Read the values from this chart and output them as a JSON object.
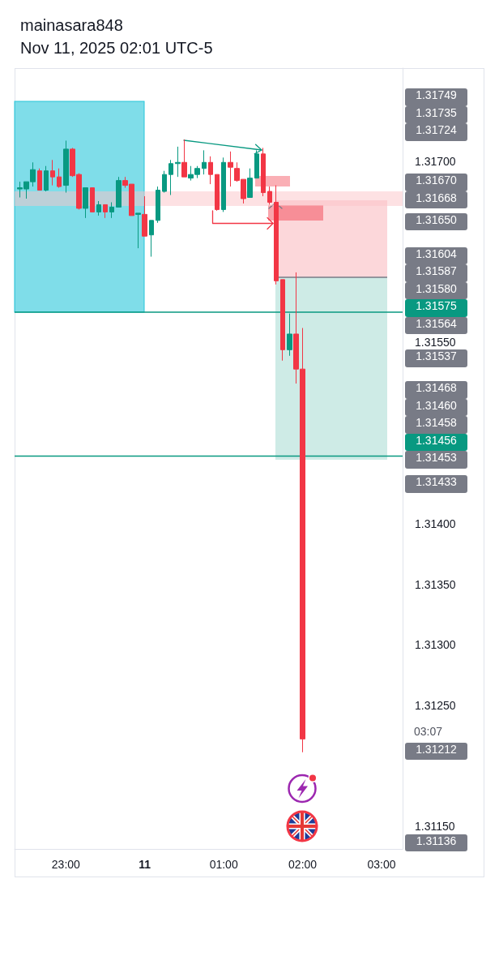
{
  "chart_data": {
    "type": "candlestick",
    "title": "mainasara848",
    "subtitle": "Nov 11, 2025 02:01 UTC-5",
    "x": [
      "2025-11-10T22:25",
      "2025-11-10T22:30",
      "2025-11-10T22:35",
      "2025-11-10T22:40",
      "2025-11-10T22:45",
      "2025-11-10T22:50",
      "2025-11-10T22:55",
      "2025-11-10T23:00",
      "2025-11-10T23:05",
      "2025-11-10T23:10",
      "2025-11-10T23:15",
      "2025-11-10T23:20",
      "2025-11-10T23:25",
      "2025-11-10T23:30",
      "2025-11-10T23:35",
      "2025-11-10T23:40",
      "2025-11-10T23:45",
      "2025-11-10T23:50",
      "2025-11-10T23:55",
      "2025-11-11T00:00",
      "2025-11-11T00:05",
      "2025-11-11T00:10",
      "2025-11-11T00:15",
      "2025-11-11T00:20",
      "2025-11-11T00:25",
      "2025-11-11T00:30",
      "2025-11-11T00:35",
      "2025-11-11T00:40",
      "2025-11-11T00:45",
      "2025-11-11T00:50",
      "2025-11-11T00:55",
      "2025-11-11T01:00",
      "2025-11-11T01:05",
      "2025-11-11T01:10",
      "2025-11-11T01:15",
      "2025-11-11T01:20",
      "2025-11-11T01:25",
      "2025-11-11T01:30",
      "2025-11-11T01:35",
      "2025-11-11T01:40",
      "2025-11-11T01:45",
      "2025-11-11T01:50",
      "2025-11-11T01:55",
      "2025-11-11T02:00"
    ],
    "ohlc": [
      [
        1.31677,
        1.31683,
        1.3167,
        1.31678
      ],
      [
        1.31677,
        1.31683,
        1.31669,
        1.31683
      ],
      [
        1.31683,
        1.31699,
        1.31679,
        1.31693
      ],
      [
        1.31692,
        1.31694,
        1.31676,
        1.31676
      ],
      [
        1.31676,
        1.31696,
        1.31675,
        1.31692
      ],
      [
        1.31692,
        1.31701,
        1.3168,
        1.31687
      ],
      [
        1.31687,
        1.31694,
        1.31678,
        1.31679
      ],
      [
        1.3168,
        1.31717,
        1.31674,
        1.3171
      ],
      [
        1.3171,
        1.31711,
        1.31687,
        1.31688
      ],
      [
        1.31689,
        1.3169,
        1.3166,
        1.31661
      ],
      [
        1.31661,
        1.31678,
        1.31653,
        1.31678
      ],
      [
        1.31678,
        1.31678,
        1.31658,
        1.31658
      ],
      [
        1.31658,
        1.31667,
        1.31655,
        1.31664
      ],
      [
        1.31664,
        1.31664,
        1.31653,
        1.31658
      ],
      [
        1.31658,
        1.31666,
        1.31653,
        1.31662
      ],
      [
        1.31662,
        1.31687,
        1.31662,
        1.31684
      ],
      [
        1.31684,
        1.31687,
        1.31678,
        1.3168
      ],
      [
        1.31681,
        1.31681,
        1.31655,
        1.31655
      ],
      [
        1.31656,
        1.31657,
        1.31628,
        1.31657
      ],
      [
        1.31656,
        1.31671,
        1.31638,
        1.31638
      ],
      [
        1.31639,
        1.31651,
        1.31621,
        1.31651
      ],
      [
        1.31651,
        1.31679,
        1.31649,
        1.31676
      ],
      [
        1.31675,
        1.31692,
        1.31674,
        1.31689
      ],
      [
        1.31689,
        1.31701,
        1.31672,
        1.31698
      ],
      [
        1.31698,
        1.31712,
        1.31687,
        1.31699
      ],
      [
        1.31699,
        1.31718,
        1.31687,
        1.31687
      ],
      [
        1.31686,
        1.31696,
        1.31684,
        1.31689
      ],
      [
        1.31689,
        1.31696,
        1.31686,
        1.31694
      ],
      [
        1.31694,
        1.31709,
        1.31689,
        1.31699
      ],
      [
        1.31699,
        1.31704,
        1.31681,
        1.31689
      ],
      [
        1.31689,
        1.31689,
        1.31659,
        1.3166
      ],
      [
        1.3166,
        1.31703,
        1.31658,
        1.31699
      ],
      [
        1.31699,
        1.31708,
        1.31679,
        1.31695
      ],
      [
        1.31694,
        1.31699,
        1.31683,
        1.31684
      ],
      [
        1.31685,
        1.31685,
        1.31665,
        1.31669
      ],
      [
        1.3167,
        1.31694,
        1.3167,
        1.31686
      ],
      [
        1.31686,
        1.31709,
        1.31686,
        1.31706
      ],
      [
        1.31706,
        1.31711,
        1.31671,
        1.31674
      ],
      [
        1.31675,
        1.31679,
        1.31664,
        1.31666
      ],
      [
        1.31666,
        1.3168,
        1.31598,
        1.31601
      ],
      [
        1.31602,
        1.31602,
        1.31535,
        1.31544
      ],
      [
        1.31544,
        1.31574,
        1.31539,
        1.31557
      ],
      [
        1.31557,
        1.31608,
        1.31516,
        1.31528
      ],
      [
        1.31528,
        1.31562,
        1.31211,
        1.31222
      ]
    ],
    "colors": [
      "#089981",
      "#089981",
      "#089981",
      "#f23645",
      "#089981",
      "#f23645",
      "#f23645",
      "#089981",
      "#f23645",
      "#f23645",
      "#089981",
      "#f23645",
      "#089981",
      "#f23645",
      "#089981",
      "#089981",
      "#f23645",
      "#f23645",
      "#089981",
      "#f23645",
      "#089981",
      "#089981",
      "#089981",
      "#089981",
      "#089981",
      "#f23645",
      "#089981",
      "#089981",
      "#089981",
      "#f23645",
      "#f23645",
      "#089981",
      "#f23645",
      "#f23645",
      "#f23645",
      "#089981",
      "#089981",
      "#f23645",
      "#f23645",
      "#f23645",
      "#f23645",
      "#089981",
      "#f23645",
      "#f23645"
    ],
    "xlim": [
      "2025-11-10T22:21",
      "2025-11-11T03:16"
    ],
    "xticks": [
      {
        "value": "2025-11-10T23:00",
        "label": "23:00"
      },
      {
        "value": "2025-11-11T00:00",
        "label": "11"
      },
      {
        "value": "2025-11-11T01:00",
        "label": "01:00"
      },
      {
        "value": "2025-11-11T02:00",
        "label": "02:00"
      },
      {
        "value": "2025-11-11T03:00",
        "label": "03:00"
      }
    ],
    "ylim": [
      1.31131,
      1.31777
    ],
    "yticks": [
      {
        "value": 1.317,
        "label": "1.31700"
      },
      {
        "value": 1.3155,
        "label": "1.31550"
      },
      {
        "value": 1.314,
        "label": "1.31400"
      },
      {
        "value": 1.3135,
        "label": "1.31350"
      },
      {
        "value": 1.313,
        "label": "1.31300"
      },
      {
        "value": 1.3125,
        "label": "1.31250"
      },
      {
        "value": 1.3115,
        "label": "1.31150"
      }
    ],
    "ref_lines": [
      {
        "axis": "y",
        "value": 1.31575,
        "label": "1.31575",
        "color": "#089981"
      },
      {
        "axis": "y",
        "value": 1.31456,
        "label": "1.31456",
        "color": "#089981"
      }
    ],
    "bands": [
      {
        "axis": "y",
        "from": 1.31663,
        "to": 1.31675,
        "color": "#fde1e3"
      }
    ],
    "annotations": [
      "1.31749",
      "1.31735",
      "1.31724",
      "1.31670",
      "1.31668",
      "1.31650",
      "1.31604",
      "1.31587",
      "1.31580",
      "1.31564",
      "1.31537",
      "1.31468",
      "1.31460",
      "1.31458",
      "1.31453",
      "1.31433",
      "03:07",
      "1.31212",
      "1.31136"
    ]
  }
}
